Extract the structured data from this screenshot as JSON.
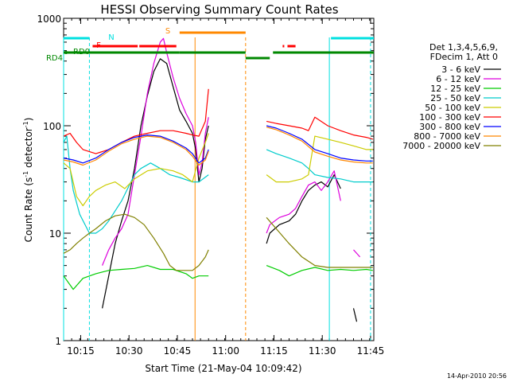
{
  "chart_data": {
    "type": "line",
    "title": "HESSI Observing Summary Count Rates",
    "xlabel": "Start Time (21-May-04 10:09:42)",
    "ylabel_base": "Count Rate (s",
    "ylabel_sup1": "-1",
    "ylabel_mid": " detector",
    "ylabel_sup2": "-1",
    "ylabel_end": ")",
    "y_scale": "log",
    "ylim": [
      1,
      1000
    ],
    "xlim_minutes": [
      0,
      96.3
    ],
    "x_ticks": [
      {
        "label": "10:15",
        "min": 5.3
      },
      {
        "label": "10:30",
        "min": 20.3
      },
      {
        "label": "10:45",
        "min": 35.3
      },
      {
        "label": "11:00",
        "min": 50.3
      },
      {
        "label": "11:15",
        "min": 65.3
      },
      {
        "label": "11:30",
        "min": 80.3
      },
      {
        "label": "11:45",
        "min": 95.3
      }
    ],
    "y_ticks": [
      {
        "label": "1",
        "v": 1
      },
      {
        "label": "10",
        "v": 10
      },
      {
        "label": "100",
        "v": 100
      },
      {
        "label": "1000",
        "v": 1000
      }
    ],
    "legend_header": [
      "Det 1,3,4,5,6,9,",
      "FDecim 1, Att 0"
    ],
    "legend_position": "right",
    "series": [
      {
        "name": "3 - 6 keV",
        "color": "#000000",
        "points": [
          [
            12,
            2
          ],
          [
            14,
            4
          ],
          [
            16,
            8
          ],
          [
            18,
            13
          ],
          [
            20,
            20
          ],
          [
            22,
            40
          ],
          [
            24,
            100
          ],
          [
            26,
            190
          ],
          [
            28,
            320
          ],
          [
            30,
            420
          ],
          [
            32,
            380
          ],
          [
            34,
            230
          ],
          [
            36,
            140
          ],
          [
            38,
            110
          ],
          [
            40,
            85
          ],
          [
            41,
            60
          ],
          [
            42,
            30
          ],
          [
            43,
            40
          ],
          [
            44,
            75
          ],
          [
            45,
            100
          ],
          [
            50,
            null
          ],
          [
            63,
            8
          ],
          [
            64,
            10
          ],
          [
            67,
            12
          ],
          [
            70,
            13
          ],
          [
            72,
            15
          ],
          [
            74,
            20
          ],
          [
            76,
            25
          ],
          [
            78,
            28
          ],
          [
            80,
            30
          ],
          [
            82,
            27
          ],
          [
            84,
            35
          ],
          [
            86,
            26
          ],
          [
            88,
            null
          ],
          [
            90,
            2
          ],
          [
            91,
            1.5
          ]
        ]
      },
      {
        "name": "6 - 12 keV",
        "color": "#dd00dd",
        "points": [
          [
            12,
            5
          ],
          [
            14,
            7
          ],
          [
            16,
            9
          ],
          [
            18,
            11
          ],
          [
            20,
            15
          ],
          [
            22,
            35
          ],
          [
            24,
            80
          ],
          [
            26,
            200
          ],
          [
            28,
            380
          ],
          [
            30,
            600
          ],
          [
            31,
            650
          ],
          [
            32,
            480
          ],
          [
            34,
            280
          ],
          [
            36,
            180
          ],
          [
            38,
            130
          ],
          [
            40,
            100
          ],
          [
            41,
            70
          ],
          [
            42,
            35
          ],
          [
            43,
            45
          ],
          [
            44,
            85
          ],
          [
            45,
            120
          ],
          [
            50,
            null
          ],
          [
            63,
            10
          ],
          [
            64,
            12
          ],
          [
            67,
            14
          ],
          [
            70,
            15
          ],
          [
            72,
            17
          ],
          [
            74,
            22
          ],
          [
            76,
            28
          ],
          [
            78,
            30
          ],
          [
            80,
            25
          ],
          [
            82,
            30
          ],
          [
            84,
            38
          ],
          [
            86,
            20
          ],
          [
            88,
            null
          ],
          [
            90,
            7
          ],
          [
            92,
            6
          ]
        ]
      },
      {
        "name": "12 - 25 keV",
        "color": "#00cc00",
        "points": [
          [
            0,
            4
          ],
          [
            3,
            3
          ],
          [
            6,
            3.8
          ],
          [
            10,
            4.2
          ],
          [
            14,
            4.5
          ],
          [
            18,
            4.6
          ],
          [
            22,
            4.7
          ],
          [
            26,
            5
          ],
          [
            30,
            4.6
          ],
          [
            34,
            4.6
          ],
          [
            38,
            4.2
          ],
          [
            40,
            3.8
          ],
          [
            42,
            4
          ],
          [
            45,
            4
          ],
          [
            50,
            null
          ],
          [
            63,
            5
          ],
          [
            67,
            4.5
          ],
          [
            70,
            4
          ],
          [
            74,
            4.5
          ],
          [
            78,
            4.8
          ],
          [
            82,
            4.5
          ],
          [
            86,
            4.6
          ],
          [
            90,
            4.5
          ],
          [
            94,
            4.6
          ],
          [
            96,
            4.5
          ]
        ]
      },
      {
        "name": "25 - 50 keV",
        "color": "#00cccc",
        "points": [
          [
            0,
            70
          ],
          [
            1,
            80
          ],
          [
            2,
            40
          ],
          [
            3,
            25
          ],
          [
            5,
            15
          ],
          [
            8,
            10
          ],
          [
            10,
            10
          ],
          [
            12,
            11
          ],
          [
            14,
            13
          ],
          [
            18,
            20
          ],
          [
            22,
            35
          ],
          [
            24,
            40
          ],
          [
            27,
            45
          ],
          [
            30,
            40
          ],
          [
            33,
            35
          ],
          [
            36,
            33
          ],
          [
            40,
            30
          ],
          [
            42,
            30
          ],
          [
            45,
            35
          ],
          [
            50,
            null
          ],
          [
            63,
            60
          ],
          [
            66,
            55
          ],
          [
            70,
            50
          ],
          [
            74,
            45
          ],
          [
            76,
            40
          ],
          [
            78,
            35
          ],
          [
            82,
            33
          ],
          [
            86,
            32
          ],
          [
            90,
            30
          ],
          [
            94,
            30
          ],
          [
            96,
            30
          ]
        ]
      },
      {
        "name": "50 - 100 keV",
        "color": "#cccc00",
        "points": [
          [
            0,
            45
          ],
          [
            2,
            40
          ],
          [
            4,
            22
          ],
          [
            6,
            18
          ],
          [
            8,
            22
          ],
          [
            10,
            25
          ],
          [
            13,
            28
          ],
          [
            16,
            30
          ],
          [
            19,
            26
          ],
          [
            22,
            32
          ],
          [
            26,
            38
          ],
          [
            30,
            40
          ],
          [
            34,
            38
          ],
          [
            37,
            35
          ],
          [
            40,
            30
          ],
          [
            42,
            50
          ],
          [
            44,
            70
          ],
          [
            45,
            85
          ],
          [
            50,
            null
          ],
          [
            63,
            35
          ],
          [
            66,
            30
          ],
          [
            70,
            30
          ],
          [
            74,
            32
          ],
          [
            76,
            35
          ],
          [
            78,
            80
          ],
          [
            82,
            75
          ],
          [
            86,
            70
          ],
          [
            90,
            65
          ],
          [
            94,
            60
          ],
          [
            96,
            60
          ]
        ]
      },
      {
        "name": "100 - 300 keV",
        "color": "#ff0000",
        "points": [
          [
            0,
            80
          ],
          [
            2,
            85
          ],
          [
            4,
            70
          ],
          [
            6,
            60
          ],
          [
            10,
            55
          ],
          [
            14,
            60
          ],
          [
            18,
            70
          ],
          [
            22,
            80
          ],
          [
            26,
            85
          ],
          [
            30,
            90
          ],
          [
            34,
            90
          ],
          [
            38,
            85
          ],
          [
            40,
            82
          ],
          [
            42,
            80
          ],
          [
            44,
            110
          ],
          [
            45,
            220
          ],
          [
            50,
            null
          ],
          [
            63,
            110
          ],
          [
            66,
            105
          ],
          [
            70,
            100
          ],
          [
            74,
            95
          ],
          [
            76,
            90
          ],
          [
            78,
            120
          ],
          [
            82,
            100
          ],
          [
            86,
            90
          ],
          [
            90,
            82
          ],
          [
            94,
            78
          ],
          [
            96,
            75
          ]
        ]
      },
      {
        "name": "300 - 800 keV",
        "color": "#0000ff",
        "points": [
          [
            0,
            50
          ],
          [
            3,
            48
          ],
          [
            6,
            45
          ],
          [
            10,
            50
          ],
          [
            14,
            60
          ],
          [
            18,
            70
          ],
          [
            22,
            78
          ],
          [
            26,
            82
          ],
          [
            30,
            80
          ],
          [
            34,
            72
          ],
          [
            38,
            62
          ],
          [
            40,
            55
          ],
          [
            42,
            45
          ],
          [
            44,
            50
          ],
          [
            45,
            60
          ],
          [
            50,
            null
          ],
          [
            63,
            100
          ],
          [
            66,
            95
          ],
          [
            70,
            85
          ],
          [
            74,
            75
          ],
          [
            78,
            60
          ],
          [
            82,
            55
          ],
          [
            86,
            50
          ],
          [
            90,
            48
          ],
          [
            94,
            47
          ],
          [
            96,
            47
          ]
        ]
      },
      {
        "name": "800 - 7000 keV",
        "color": "#ff8800",
        "points": [
          [
            0,
            48
          ],
          [
            3,
            46
          ],
          [
            6,
            43
          ],
          [
            10,
            48
          ],
          [
            14,
            58
          ],
          [
            18,
            68
          ],
          [
            22,
            75
          ],
          [
            26,
            80
          ],
          [
            30,
            78
          ],
          [
            34,
            70
          ],
          [
            38,
            60
          ],
          [
            40,
            52
          ],
          [
            42,
            43
          ],
          [
            44,
            48
          ],
          [
            45,
            58
          ],
          [
            50,
            null
          ],
          [
            63,
            97
          ],
          [
            66,
            92
          ],
          [
            70,
            82
          ],
          [
            74,
            72
          ],
          [
            78,
            57
          ],
          [
            82,
            52
          ],
          [
            86,
            48
          ],
          [
            90,
            46
          ],
          [
            94,
            45
          ],
          [
            96,
            45
          ]
        ]
      },
      {
        "name": "7000 - 20000 keV",
        "color": "#808000",
        "points": [
          [
            0,
            6.5
          ],
          [
            2,
            7
          ],
          [
            4,
            8
          ],
          [
            6,
            9
          ],
          [
            8,
            10
          ],
          [
            10,
            11
          ],
          [
            13,
            13
          ],
          [
            16,
            14.5
          ],
          [
            19,
            15
          ],
          [
            22,
            14
          ],
          [
            25,
            12
          ],
          [
            28,
            9
          ],
          [
            31,
            6.5
          ],
          [
            33,
            5
          ],
          [
            35,
            4.5
          ],
          [
            38,
            4.5
          ],
          [
            40,
            4.5
          ],
          [
            42,
            5
          ],
          [
            44,
            6
          ],
          [
            45,
            7
          ],
          [
            50,
            null
          ],
          [
            63,
            14
          ],
          [
            66,
            11
          ],
          [
            70,
            8
          ],
          [
            74,
            6
          ],
          [
            78,
            5
          ],
          [
            82,
            4.8
          ],
          [
            86,
            4.8
          ],
          [
            90,
            4.8
          ],
          [
            94,
            4.8
          ],
          [
            96,
            4.8
          ]
        ]
      }
    ],
    "annotations": [
      {
        "label": "N",
        "color": "#00e0e0"
      },
      {
        "label": "F",
        "color": "#ff0000"
      },
      {
        "label": "S",
        "color": "#ff8800"
      },
      {
        "label": "RD0",
        "color": "#008800"
      },
      {
        "label": "RD4",
        "color": "#008800"
      }
    ]
  },
  "footer_timestamp": "14-Apr-2010 20:56"
}
